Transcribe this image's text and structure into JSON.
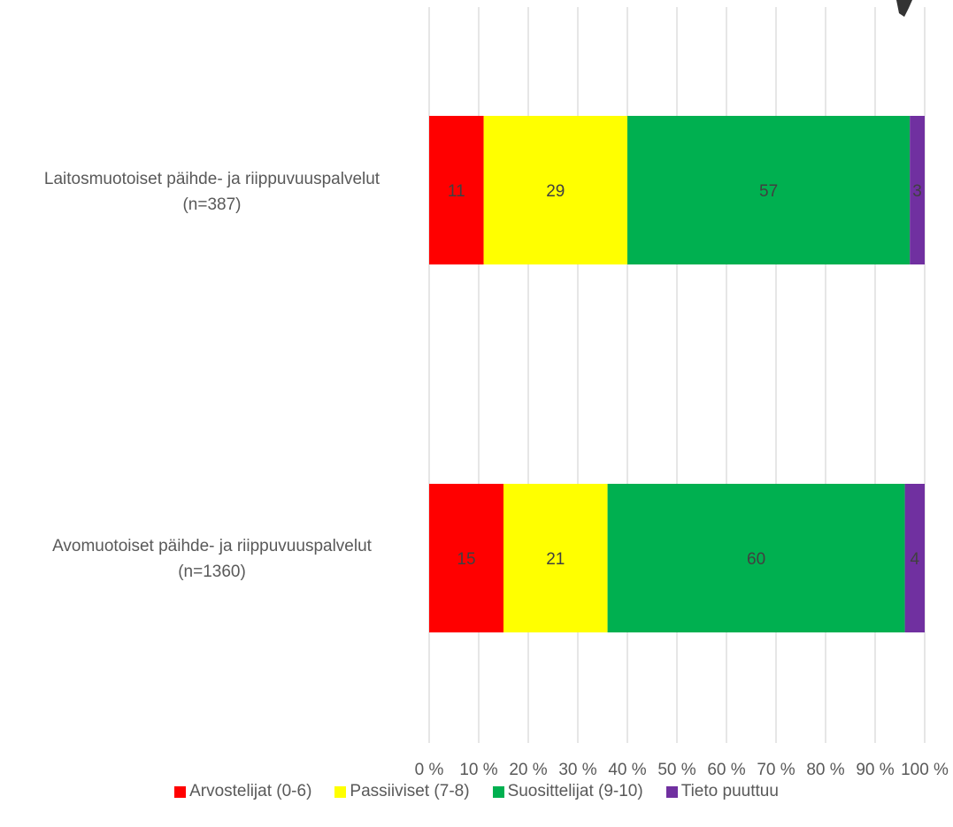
{
  "chart_data": {
    "type": "bar",
    "orientation": "horizontal",
    "stacked": "percent",
    "categories": [
      "Laitosmuotoiset päihde- ja riippuvuuspalvelut (n=387)",
      "Avomuotoiset päihde- ja riippuvuuspalvelut (n=1360)"
    ],
    "category_lines": [
      [
        "Laitosmuotoiset päihde- ja riippuvuuspalvelut",
        "(n=387)"
      ],
      [
        "Avomuotoiset päihde- ja riippuvuuspalvelut",
        "(n=1360)"
      ]
    ],
    "series": [
      {
        "name": "Arvostelijat (0-6)",
        "color": "#ff0000",
        "values": [
          11,
          15
        ]
      },
      {
        "name": "Passiiviset (7-8)",
        "color": "#ffff00",
        "values": [
          29,
          21
        ]
      },
      {
        "name": "Suosittelijat (9-10)",
        "color": "#00b050",
        "values": [
          57,
          60
        ]
      },
      {
        "name": "Tieto puuttuu",
        "color": "#7030a0",
        "values": [
          3,
          4
        ]
      }
    ],
    "xlim": [
      0,
      100
    ],
    "xticks": [
      "0 %",
      "10 %",
      "20 %",
      "30 %",
      "40 %",
      "50 %",
      "60 %",
      "70 %",
      "80 %",
      "90 %",
      "100 %"
    ],
    "grid": true,
    "legend": "bottom",
    "data_labels": true
  }
}
